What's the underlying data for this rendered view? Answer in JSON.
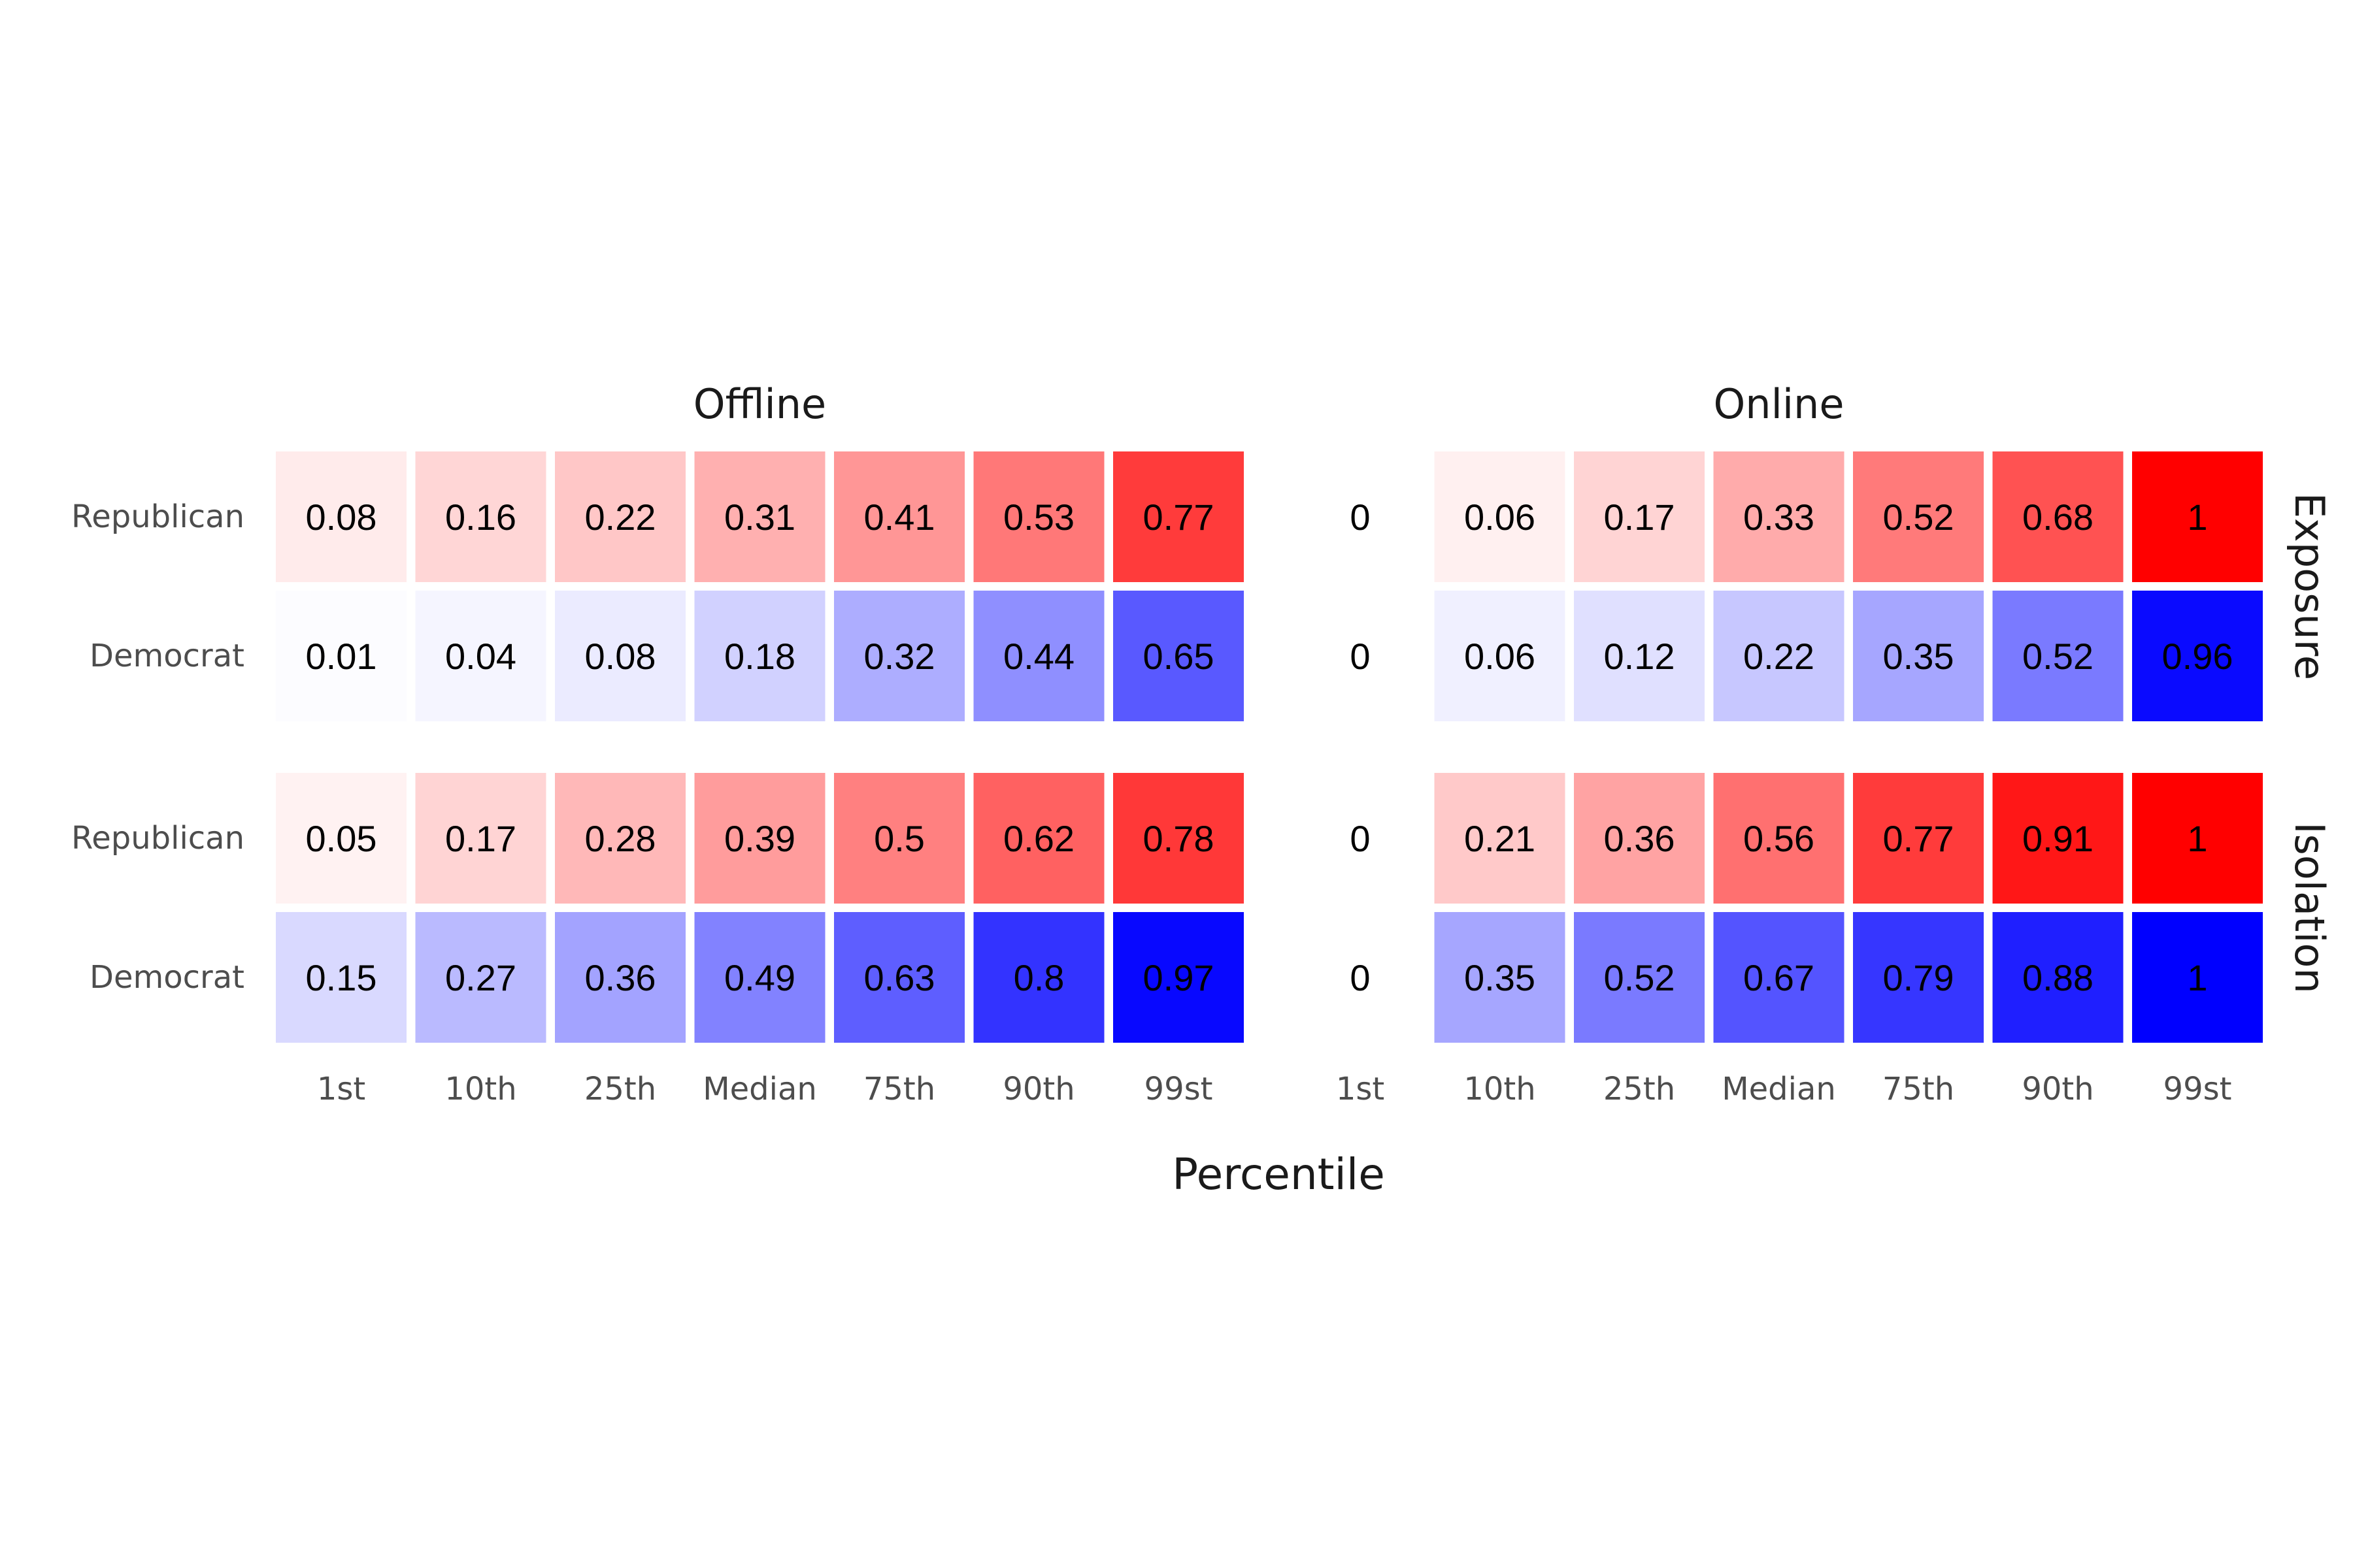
{
  "chart_data": {
    "type": "heatmap",
    "xlabel": "Percentile",
    "categories": [
      "1st",
      "10th",
      "25th",
      "Median",
      "75th",
      "90th",
      "99st"
    ],
    "columns": [
      "Offline",
      "Online"
    ],
    "rows": [
      "Exposure",
      "Isolation"
    ],
    "groups": [
      "Republican",
      "Democrat"
    ],
    "colors": {
      "Republican": "#ff0000",
      "Democrat": "#0000ff",
      "low": "#ffffff"
    },
    "value_range": [
      0,
      1
    ],
    "panels": [
      {
        "column": "Offline",
        "row": "Exposure",
        "series": [
          {
            "name": "Republican",
            "values": [
              0.08,
              0.16,
              0.22,
              0.31,
              0.41,
              0.53,
              0.77
            ]
          },
          {
            "name": "Democrat",
            "values": [
              0.01,
              0.04,
              0.08,
              0.18,
              0.32,
              0.44,
              0.65
            ]
          }
        ]
      },
      {
        "column": "Online",
        "row": "Exposure",
        "series": [
          {
            "name": "Republican",
            "values": [
              0,
              0.06,
              0.17,
              0.33,
              0.52,
              0.68,
              1
            ]
          },
          {
            "name": "Democrat",
            "values": [
              0,
              0.06,
              0.12,
              0.22,
              0.35,
              0.52,
              0.96
            ]
          }
        ]
      },
      {
        "column": "Offline",
        "row": "Isolation",
        "series": [
          {
            "name": "Republican",
            "values": [
              0.05,
              0.17,
              0.28,
              0.39,
              0.5,
              0.62,
              0.78
            ]
          },
          {
            "name": "Democrat",
            "values": [
              0.15,
              0.27,
              0.36,
              0.49,
              0.63,
              0.8,
              0.97
            ]
          }
        ]
      },
      {
        "column": "Online",
        "row": "Isolation",
        "series": [
          {
            "name": "Republican",
            "values": [
              0,
              0.21,
              0.36,
              0.56,
              0.77,
              0.91,
              1
            ]
          },
          {
            "name": "Democrat",
            "values": [
              0,
              0.35,
              0.52,
              0.67,
              0.79,
              0.88,
              1
            ]
          }
        ]
      }
    ]
  }
}
